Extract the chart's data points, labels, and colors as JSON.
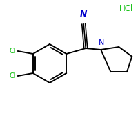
{
  "background_color": "#ffffff",
  "bond_color": "#000000",
  "cl_color": "#00bb00",
  "n_color": "#0000cc",
  "hcl_color": "#00bb00",
  "hcl_text": "HCl",
  "n_label": "N",
  "cn_label": "N",
  "cl_label": "Cl",
  "figsize": [
    2.0,
    2.0
  ],
  "dpi": 100
}
